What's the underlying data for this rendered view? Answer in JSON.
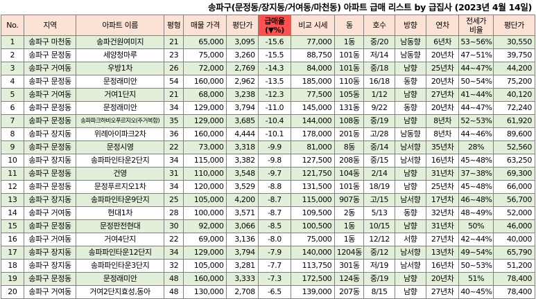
{
  "title": "송파구(문정동/장지동/거여동/마천동) 아파트 급매 리스트 by 급집사 (2023년 4월 14일)",
  "headers": [
    "No.",
    "지역",
    "아파트 이름",
    "평형",
    "매물 가격",
    "평단가",
    "급매율\n(▼%)",
    "비교 시세",
    "동",
    "호수",
    "방향",
    "연차",
    "전세가\n비율",
    "평단가"
  ],
  "rows": [
    [
      "1",
      "송파구 마천동",
      "송파건원여미지",
      "21",
      "65,000",
      "3,095",
      "-15.6",
      "77,000",
      "1동",
      "중/20",
      "남동향",
      "6년차",
      "53~56%",
      "30,550"
    ],
    [
      "2",
      "송파구 문정동",
      "세양청마루",
      "23",
      "75,000",
      "3,260",
      "-15.5",
      "88,750",
      "101동",
      "저/14",
      "남동향",
      "20년차",
      "47~51%",
      "39,750"
    ],
    [
      "3",
      "송파구 거여동",
      "우방1차",
      "26",
      "72,000",
      "2,769",
      "-14.3",
      "84,000",
      "101동",
      "중/18",
      "남향",
      "25년차",
      "44~47%",
      "44,200"
    ],
    [
      "4",
      "송파구 문정동",
      "문정래미안",
      "54",
      "160,000",
      "2,962",
      "-13.5",
      "185,000",
      "110동",
      "16/18",
      "동향",
      "20년차",
      "50~54%",
      "75,200"
    ],
    [
      "5",
      "송파구 거여동",
      "거여1단지",
      "21",
      "68,000",
      "3,238",
      "-12.3",
      "77,500",
      "105동",
      "1/12",
      "남향",
      "27년차",
      "41~44%",
      "40,120"
    ],
    [
      "6",
      "송파구 문정동",
      "문정래미안",
      "34",
      "129,000",
      "3,794",
      "-11.0",
      "145,000",
      "131동",
      "9/22",
      "동향",
      "20년차",
      "44~47%",
      "72,240"
    ],
    [
      "7",
      "송파구 문정동",
      "송파파크하비오푸르지오(주거복합)",
      "35",
      "129,000",
      "3,685",
      "-10.4",
      "144,000",
      "108동",
      "중/19",
      "남향",
      "8년차",
      "52~53%",
      "61,920"
    ],
    [
      "8",
      "송파구 장지동",
      "위례아이파크2차",
      "36",
      "160,000",
      "4,444",
      "-10.1",
      "178,000",
      "201동",
      "고/28",
      "남동향",
      "8년차",
      "44~46%",
      "89,600"
    ],
    [
      "9",
      "송파구 문정동",
      "문정시영",
      "22",
      "73,000",
      "3,318",
      "-9.9",
      "81,000",
      "8동",
      "중/14",
      "남서향",
      "35년차",
      "28%",
      "52,560"
    ],
    [
      "10",
      "송파구 장지동",
      "송파파인타운2단지",
      "34",
      "115,000",
      "3,382",
      "-9.8",
      "127,500",
      "208동",
      "중/15",
      "남서향",
      "16년차",
      "45~48%",
      "63,250"
    ],
    [
      "11",
      "송파구 문정동",
      "건영",
      "31",
      "110,000",
      "3,548",
      "-9.7",
      "121,750",
      "104동",
      "2/14",
      "남향",
      "31년차",
      "37~38%",
      "69,300"
    ],
    [
      "12",
      "송파구 문정동",
      "문정푸르지오1차",
      "34",
      "120,000",
      "3,529",
      "-8.8",
      "131,500",
      "101동",
      "18/19",
      "남향",
      "25년차",
      "45~48%",
      "66,000"
    ],
    [
      "13",
      "송파구 장지동",
      "송파파인타운9단지",
      "25",
      "105,000",
      "4,200",
      "-8.7",
      "115,000",
      "907동",
      "고/15",
      "남서향",
      "17년차",
      "46~48%",
      "56,700"
    ],
    [
      "14",
      "송파구 거여동",
      "현대1차",
      "28",
      "100,000",
      "3,571",
      "-8.7",
      "109,500",
      "2동",
      "5/13",
      "동향",
      "32년차",
      "48~49%",
      "52,000"
    ],
    [
      "15",
      "송파구 문정동",
      "문정판전현대",
      "30",
      "92,000",
      "3,066",
      "-8.5",
      "100,500",
      "1동",
      "10/15",
      "남향",
      "31년차",
      "50%",
      "46,000"
    ],
    [
      "16",
      "송파구 거여동",
      "거여4단지",
      "22",
      "69,000",
      "3,136",
      "-8.0",
      "75,000",
      "1동",
      "12/12",
      "서향",
      "27년차",
      "42~44%",
      "40,000"
    ],
    [
      "17",
      "송파구 장지동",
      "송파파인타운12단지",
      "34",
      "129,000",
      "3,794",
      "-7.9",
      "140,000",
      "1204동",
      "중/12",
      "남서향",
      "13년차",
      "49~54%",
      "65,790"
    ],
    [
      "18",
      "송파구 장지동",
      "송파파인타운3단지",
      "32",
      "105,000",
      "3,281",
      "-7.7",
      "113,750",
      "301동",
      "저/19",
      "남서향",
      "16년차",
      "50~53%",
      "51,200"
    ],
    [
      "19",
      "송파구 문정동",
      "문정래미안",
      "48",
      "160,000",
      "3,333",
      "-7.3",
      "172,500",
      "124동",
      "중/19",
      "남향",
      "20년차",
      "51%",
      "78,400"
    ],
    [
      "20",
      "송파구 거여동",
      "거여2단지효성,동아",
      "48",
      "130,000",
      "2,708",
      "-6.5",
      "139,000",
      "207동",
      "8/15",
      "남향",
      "27년차",
      "40~45%",
      "78,400"
    ]
  ],
  "colors": {
    "header_bg": "#fbe2d5",
    "drop_header_bg": "#ff5050",
    "alt_row_bg": "#e2efd9",
    "border": "#7f7f7f"
  }
}
